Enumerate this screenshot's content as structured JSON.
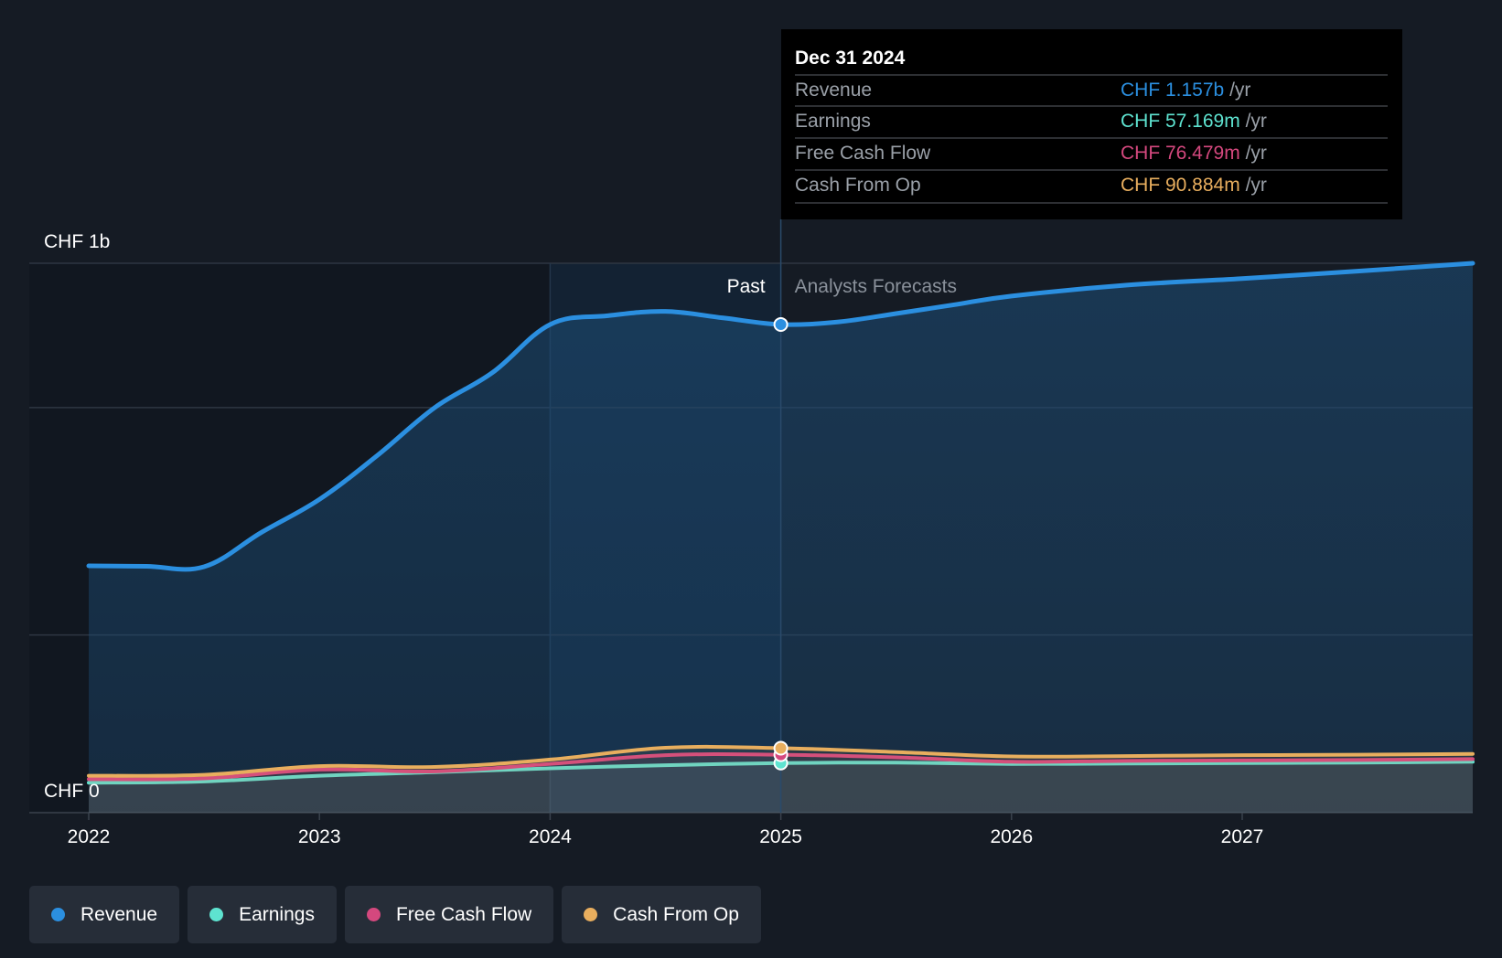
{
  "chart_data": {
    "type": "area",
    "x_ticks": [
      "2022",
      "2023",
      "2024",
      "2025",
      "2026",
      "2027"
    ],
    "y_labels": [
      "CHF 1b",
      "CHF 0"
    ],
    "ylim": [
      0,
      1.2
    ],
    "x_range": [
      "2021-09",
      "2027-12"
    ],
    "past_label": "Past",
    "forecast_label": "Analysts Forecasts",
    "divider_date": 2025.0,
    "series": [
      {
        "name": "Revenue",
        "color": "#2b8fe0",
        "points": [
          [
            2022.0,
            0.508
          ],
          [
            2022.25,
            0.507
          ],
          [
            2022.5,
            0.506
          ],
          [
            2022.75,
            0.585
          ],
          [
            2023.0,
            0.66
          ],
          [
            2023.25,
            0.76
          ],
          [
            2023.5,
            0.87
          ],
          [
            2023.75,
            0.95
          ],
          [
            2024.0,
            1.06
          ],
          [
            2024.25,
            1.08
          ],
          [
            2024.5,
            1.09
          ],
          [
            2024.75,
            1.075
          ],
          [
            2025.0,
            1.157
          ],
          [
            2025.25,
            1.066
          ],
          [
            2025.5,
            1.085
          ],
          [
            2025.75,
            1.105
          ],
          [
            2026.0,
            1.125
          ],
          [
            2026.5,
            1.15
          ],
          [
            2027.0,
            1.165
          ],
          [
            2027.5,
            1.182
          ],
          [
            2028.0,
            1.2
          ]
        ]
      },
      {
        "name": "Earnings",
        "color": "#5ee3d0",
        "points": [
          [
            2022.0,
            0.012
          ],
          [
            2022.5,
            0.015
          ],
          [
            2023.0,
            0.028
          ],
          [
            2023.5,
            0.036
          ],
          [
            2024.0,
            0.045
          ],
          [
            2024.5,
            0.052
          ],
          [
            2025.0,
            0.057
          ],
          [
            2025.5,
            0.058
          ],
          [
            2026.0,
            0.055
          ],
          [
            2026.5,
            0.056
          ],
          [
            2027.0,
            0.057
          ],
          [
            2027.5,
            0.058
          ],
          [
            2028.0,
            0.06
          ]
        ]
      },
      {
        "name": "Free Cash Flow",
        "color": "#d4487e",
        "points": [
          [
            2022.0,
            0.02
          ],
          [
            2022.5,
            0.022
          ],
          [
            2023.0,
            0.042
          ],
          [
            2023.5,
            0.038
          ],
          [
            2024.0,
            0.055
          ],
          [
            2024.5,
            0.075
          ],
          [
            2025.0,
            0.076
          ],
          [
            2025.5,
            0.07
          ],
          [
            2026.0,
            0.06
          ],
          [
            2026.5,
            0.062
          ],
          [
            2027.0,
            0.063
          ],
          [
            2027.5,
            0.064
          ],
          [
            2028.0,
            0.066
          ]
        ]
      },
      {
        "name": "Cash From Op",
        "color": "#e8ae5e",
        "points": [
          [
            2022.0,
            0.028
          ],
          [
            2022.5,
            0.03
          ],
          [
            2023.0,
            0.05
          ],
          [
            2023.5,
            0.048
          ],
          [
            2024.0,
            0.065
          ],
          [
            2024.5,
            0.092
          ],
          [
            2025.0,
            0.091
          ],
          [
            2025.5,
            0.082
          ],
          [
            2026.0,
            0.072
          ],
          [
            2026.5,
            0.073
          ],
          [
            2027.0,
            0.075
          ],
          [
            2027.5,
            0.076
          ],
          [
            2028.0,
            0.078
          ]
        ]
      }
    ],
    "tooltip": {
      "title": "Dec 31 2024",
      "rows": [
        {
          "label": "Revenue",
          "value": "CHF 1.157b",
          "unit": "/yr",
          "color": "#2b8fe0"
        },
        {
          "label": "Earnings",
          "value": "CHF 57.169m",
          "unit": "/yr",
          "color": "#5ee3d0"
        },
        {
          "label": "Free Cash Flow",
          "value": "CHF 76.479m",
          "unit": "/yr",
          "color": "#d4487e"
        },
        {
          "label": "Cash From Op",
          "value": "CHF 90.884m",
          "unit": "/yr",
          "color": "#e8ae5e"
        }
      ]
    }
  },
  "legend": [
    {
      "label": "Revenue",
      "color": "#2b8fe0"
    },
    {
      "label": "Earnings",
      "color": "#5ee3d0"
    },
    {
      "label": "Free Cash Flow",
      "color": "#d4487e"
    },
    {
      "label": "Cash From Op",
      "color": "#e8ae5e"
    }
  ]
}
